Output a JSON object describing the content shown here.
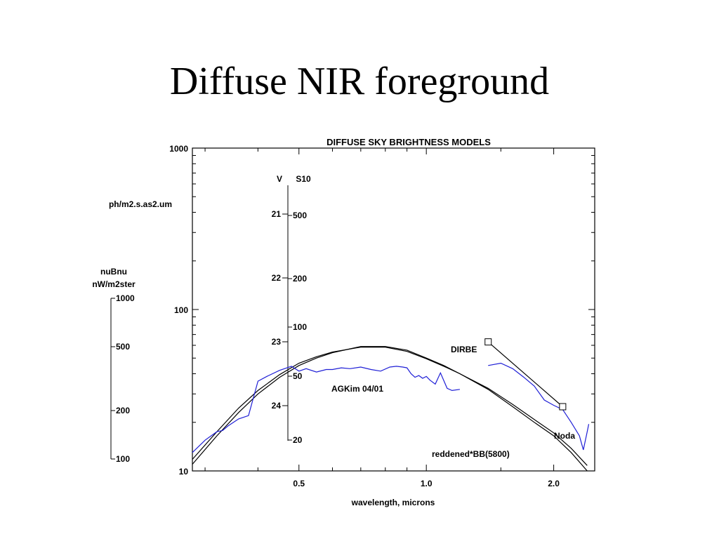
{
  "slide": {
    "title": "Diffuse NIR foreground"
  },
  "chart_data": {
    "type": "line",
    "title": "DIFFUSE SKY BRIGHTNESS MODELS",
    "xlabel": "wavelength, microns",
    "x_ticks": [
      "0.5",
      "1.0",
      "2.0"
    ],
    "x_tick_values": [
      0.5,
      1.0,
      2.0
    ],
    "xlim": [
      0.28,
      2.5
    ],
    "x_scale": "log",
    "primary_axis": {
      "label": "ph/m2.s.as2.um",
      "scale": "log",
      "ylim": [
        10,
        1000
      ],
      "ticks": [
        "10",
        "100",
        "1000"
      ],
      "tick_values": [
        10,
        100,
        1000
      ]
    },
    "nubnu_axis": {
      "label_line1": "nuBnu",
      "label_line2": "nW/m2ster",
      "ticks": [
        "1000",
        "500",
        "200",
        "100"
      ]
    },
    "v_axis": {
      "label": "V",
      "ticks": [
        "21",
        "22",
        "23",
        "24"
      ]
    },
    "s10_axis": {
      "label": "S10",
      "ticks": [
        "500",
        "200",
        "100",
        "50",
        "20"
      ]
    },
    "annotations": {
      "dirbe": "DIRBE",
      "agkim": "AGKim 04/01",
      "noda": "Noda",
      "reddened": "reddened*BB(5800)"
    },
    "series": [
      {
        "color": "#000000",
        "x": [
          0.28,
          0.32,
          0.36,
          0.4,
          0.45,
          0.5,
          0.55,
          0.6,
          0.7,
          0.8,
          0.9,
          1.0,
          1.1,
          1.2,
          1.4,
          1.6,
          1.8,
          2.0,
          2.2,
          2.4
        ],
        "y": [
          11.0,
          16.5,
          23.0,
          30.0,
          38.0,
          45.0,
          50.0,
          54.0,
          59.0,
          59.0,
          56.0,
          50.0,
          45.0,
          40.0,
          32.0,
          25.0,
          20.0,
          16.5,
          13.0,
          10.0
        ]
      },
      {
        "color": "#000000",
        "x": [
          0.28,
          0.32,
          0.36,
          0.4,
          0.45,
          0.5,
          0.55,
          0.6,
          0.7,
          0.8,
          0.9,
          1.0,
          1.1,
          1.2,
          1.4,
          1.6,
          1.8,
          2.0,
          2.2,
          2.4
        ],
        "y": [
          11.8,
          17.5,
          24.5,
          31.5,
          39.5,
          46.5,
          51.0,
          54.5,
          58.5,
          58.5,
          55.0,
          49.5,
          44.5,
          40.0,
          32.5,
          25.8,
          20.8,
          17.2,
          13.8,
          10.8
        ]
      },
      {
        "color": "#1f1fd6",
        "x": [
          0.28,
          0.3,
          0.32,
          0.33,
          0.34,
          0.36,
          0.38,
          0.4,
          0.42,
          0.45,
          0.48,
          0.5,
          0.52,
          0.55,
          0.58,
          0.6,
          0.63,
          0.66,
          0.7,
          0.74,
          0.78,
          0.82,
          0.85,
          0.88,
          0.9,
          0.92,
          0.94,
          0.96,
          0.98,
          1.0,
          1.02,
          1.05,
          1.08,
          1.12,
          1.15,
          1.2
        ],
        "y": [
          13.0,
          15.5,
          17.5,
          17.8,
          19.0,
          21.0,
          22.0,
          36.0,
          38.5,
          42.0,
          44.5,
          41.5,
          43.0,
          41.0,
          42.5,
          42.5,
          43.5,
          43.0,
          44.0,
          42.5,
          41.5,
          44.0,
          44.5,
          44.0,
          43.5,
          40.0,
          38.0,
          39.0,
          37.5,
          38.5,
          36.5,
          34.5,
          40.5,
          32.5,
          31.5,
          32.0
        ]
      },
      {
        "color": "#1f1fd6",
        "x": [
          1.4,
          1.5,
          1.6,
          1.7,
          1.8,
          1.9,
          2.0,
          2.1,
          2.2,
          2.3,
          2.35,
          2.4,
          2.42
        ],
        "y": [
          45.0,
          46.5,
          43.0,
          38.0,
          33.5,
          27.5,
          25.5,
          24.0,
          20.0,
          16.5,
          13.5,
          17.5,
          19.5
        ]
      },
      {
        "color": "#000000",
        "marker": "square",
        "x": [
          1.4,
          2.1
        ],
        "y": [
          63.0,
          25.0
        ]
      }
    ]
  }
}
